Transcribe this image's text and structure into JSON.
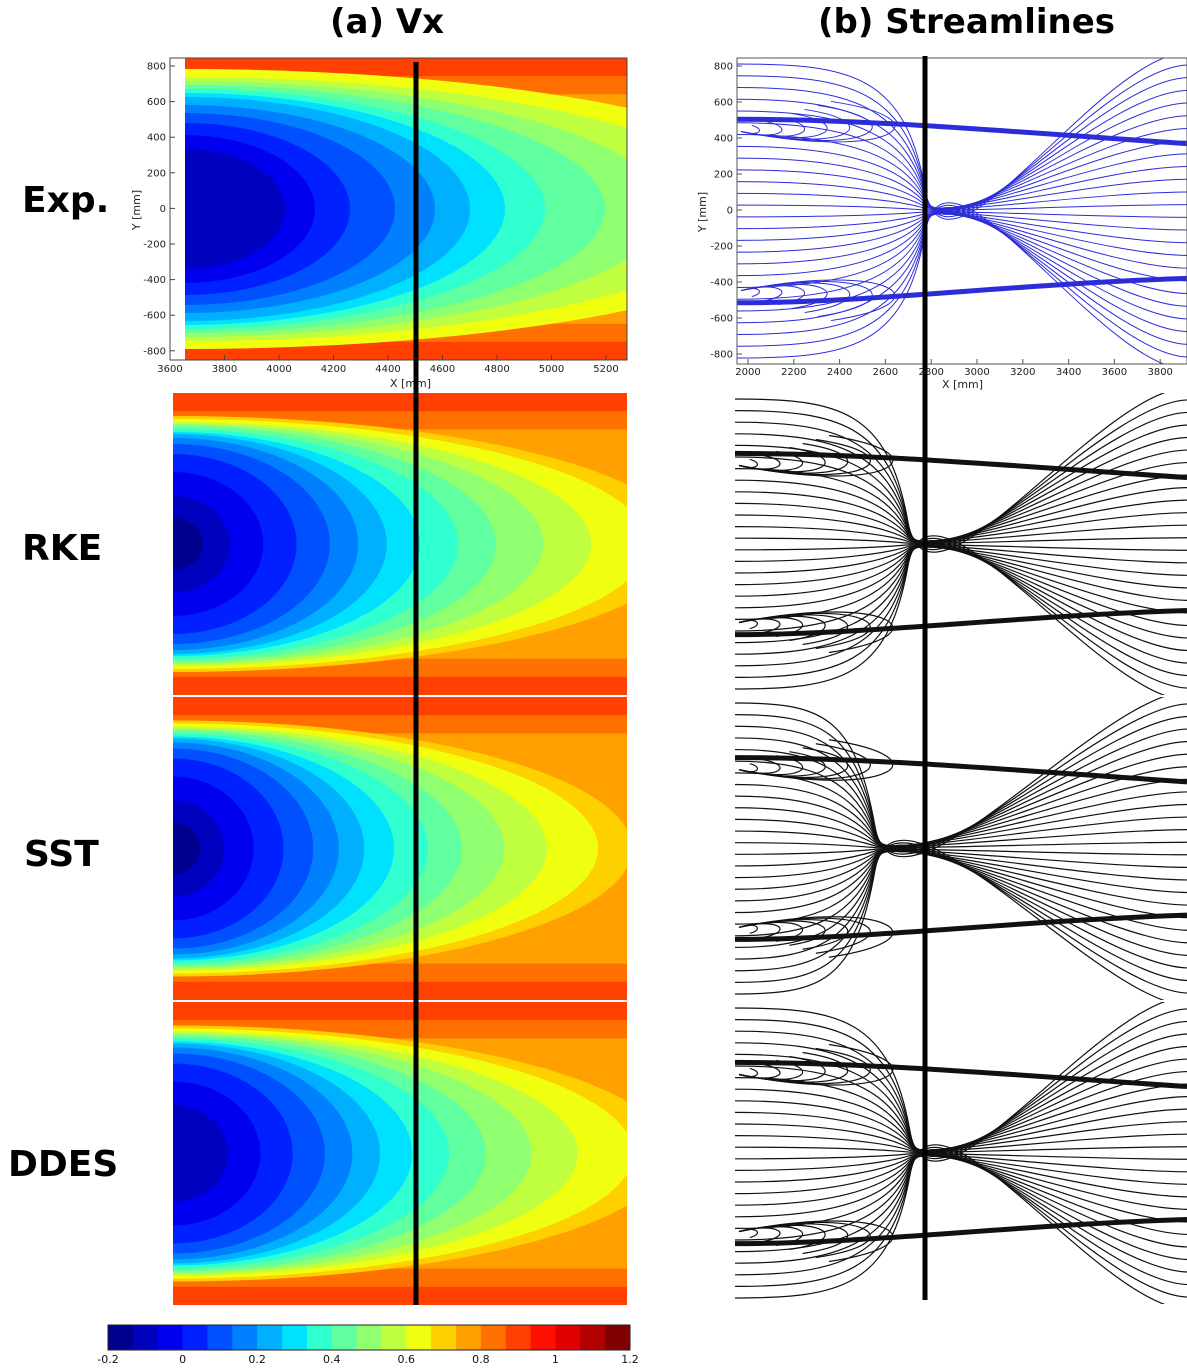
{
  "titles": {
    "vx": "(a) Vx",
    "streamlines": "(b) Streamlines"
  },
  "row_labels": [
    "Exp.",
    "RKE",
    "SST",
    "DDES"
  ],
  "exp_vx_axes": {
    "x_label": "X [mm]",
    "y_label": "Y [mm]",
    "x_ticks": [
      "3600",
      "3800",
      "4000",
      "4200",
      "4400",
      "4600",
      "4800",
      "5000",
      "5200"
    ],
    "y_ticks": [
      "800",
      "600",
      "400",
      "200",
      "0",
      "-200",
      "-400",
      "-600",
      "-800"
    ]
  },
  "exp_stream_axes": {
    "x_label": "X [mm]",
    "y_label": "Y [mm]",
    "x_ticks": [
      "2000",
      "2200",
      "2400",
      "2600",
      "2800",
      "3000",
      "3200",
      "3400",
      "3600",
      "3800"
    ],
    "y_ticks": [
      "800",
      "600",
      "400",
      "200",
      "0",
      "-200",
      "-400",
      "-600",
      "-800"
    ]
  },
  "colorbar": {
    "tick_labels": [
      "-0.2",
      "0",
      "0.2",
      "0.4",
      "0.6",
      "0.8",
      "1",
      "1.2"
    ],
    "colors": [
      "#00008f",
      "#0000bf",
      "#0000ef",
      "#0020ff",
      "#0050ff",
      "#0080ff",
      "#00b0ff",
      "#00e0ff",
      "#30ffd0",
      "#60ffa0",
      "#90ff70",
      "#c0ff40",
      "#f0ff10",
      "#ffd000",
      "#ffa000",
      "#ff7000",
      "#ff4000",
      "#ff1000",
      "#df0000",
      "#b00000",
      "#800000"
    ]
  }
}
